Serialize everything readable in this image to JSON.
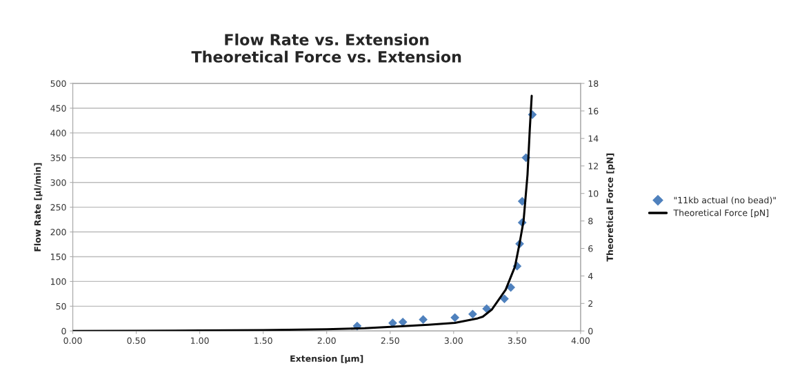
{
  "chart_data": {
    "type": "scatter",
    "title": "Flow Rate vs. Extension\nTheoretical Force vs. Extension",
    "xlabel": "Extension [µm]",
    "ylabel": "Flow Rate [µl/min]",
    "y2label": "Theoretical Force [pN]",
    "xlim": [
      0,
      4
    ],
    "xticks": [
      {
        "value": 0,
        "label": "0.00"
      },
      {
        "value": 0.5,
        "label": "0.50"
      },
      {
        "value": 1,
        "label": "1.00"
      },
      {
        "value": 1.5,
        "label": "1.50"
      },
      {
        "value": 2,
        "label": "2.00"
      },
      {
        "value": 2.5,
        "label": "2.50"
      },
      {
        "value": 3,
        "label": "3.00"
      },
      {
        "value": 3.5,
        "label": "3.50"
      },
      {
        "value": 4,
        "label": "4.00"
      }
    ],
    "ylim": [
      0,
      500
    ],
    "yticks": [
      0,
      50,
      100,
      150,
      200,
      250,
      300,
      350,
      400,
      450,
      500
    ],
    "y2lim": [
      0,
      18
    ],
    "y2ticks": [
      0,
      2,
      4,
      6,
      8,
      10,
      12,
      14,
      16,
      18
    ],
    "grid": "y",
    "legend": "right",
    "series": [
      {
        "name": "\"11kb actual (no bead)\"",
        "type": "scatter",
        "marker": "diamond",
        "color": "#4f81bd",
        "x": [
          2.24,
          2.52,
          2.6,
          2.76,
          3.01,
          3.15,
          3.26,
          3.4,
          3.45,
          3.5,
          3.52,
          3.54,
          3.54,
          3.57,
          3.62
        ],
        "values": [
          10,
          16,
          18,
          23,
          27,
          34,
          45,
          65,
          88,
          131,
          176,
          219,
          262,
          350,
          437
        ]
      },
      {
        "name": "Theoretical Force [pN]",
        "type": "line",
        "axis": "y2",
        "marker": "none",
        "line_style": "solid",
        "color": "#000000",
        "x": [
          0,
          0.5,
          1,
          1.5,
          2,
          2.3,
          2.58,
          2.8,
          3.01,
          3.19,
          3.23,
          3.3,
          3.41,
          3.483,
          3.519,
          3.551,
          3.582,
          3.6,
          3.615
        ],
        "values": [
          0,
          0.01,
          0.03,
          0.06,
          0.12,
          0.2,
          0.34,
          0.45,
          0.59,
          0.92,
          1.04,
          1.55,
          3.0,
          4.68,
          6.35,
          8.02,
          11.37,
          14.7,
          17.1
        ]
      }
    ]
  }
}
